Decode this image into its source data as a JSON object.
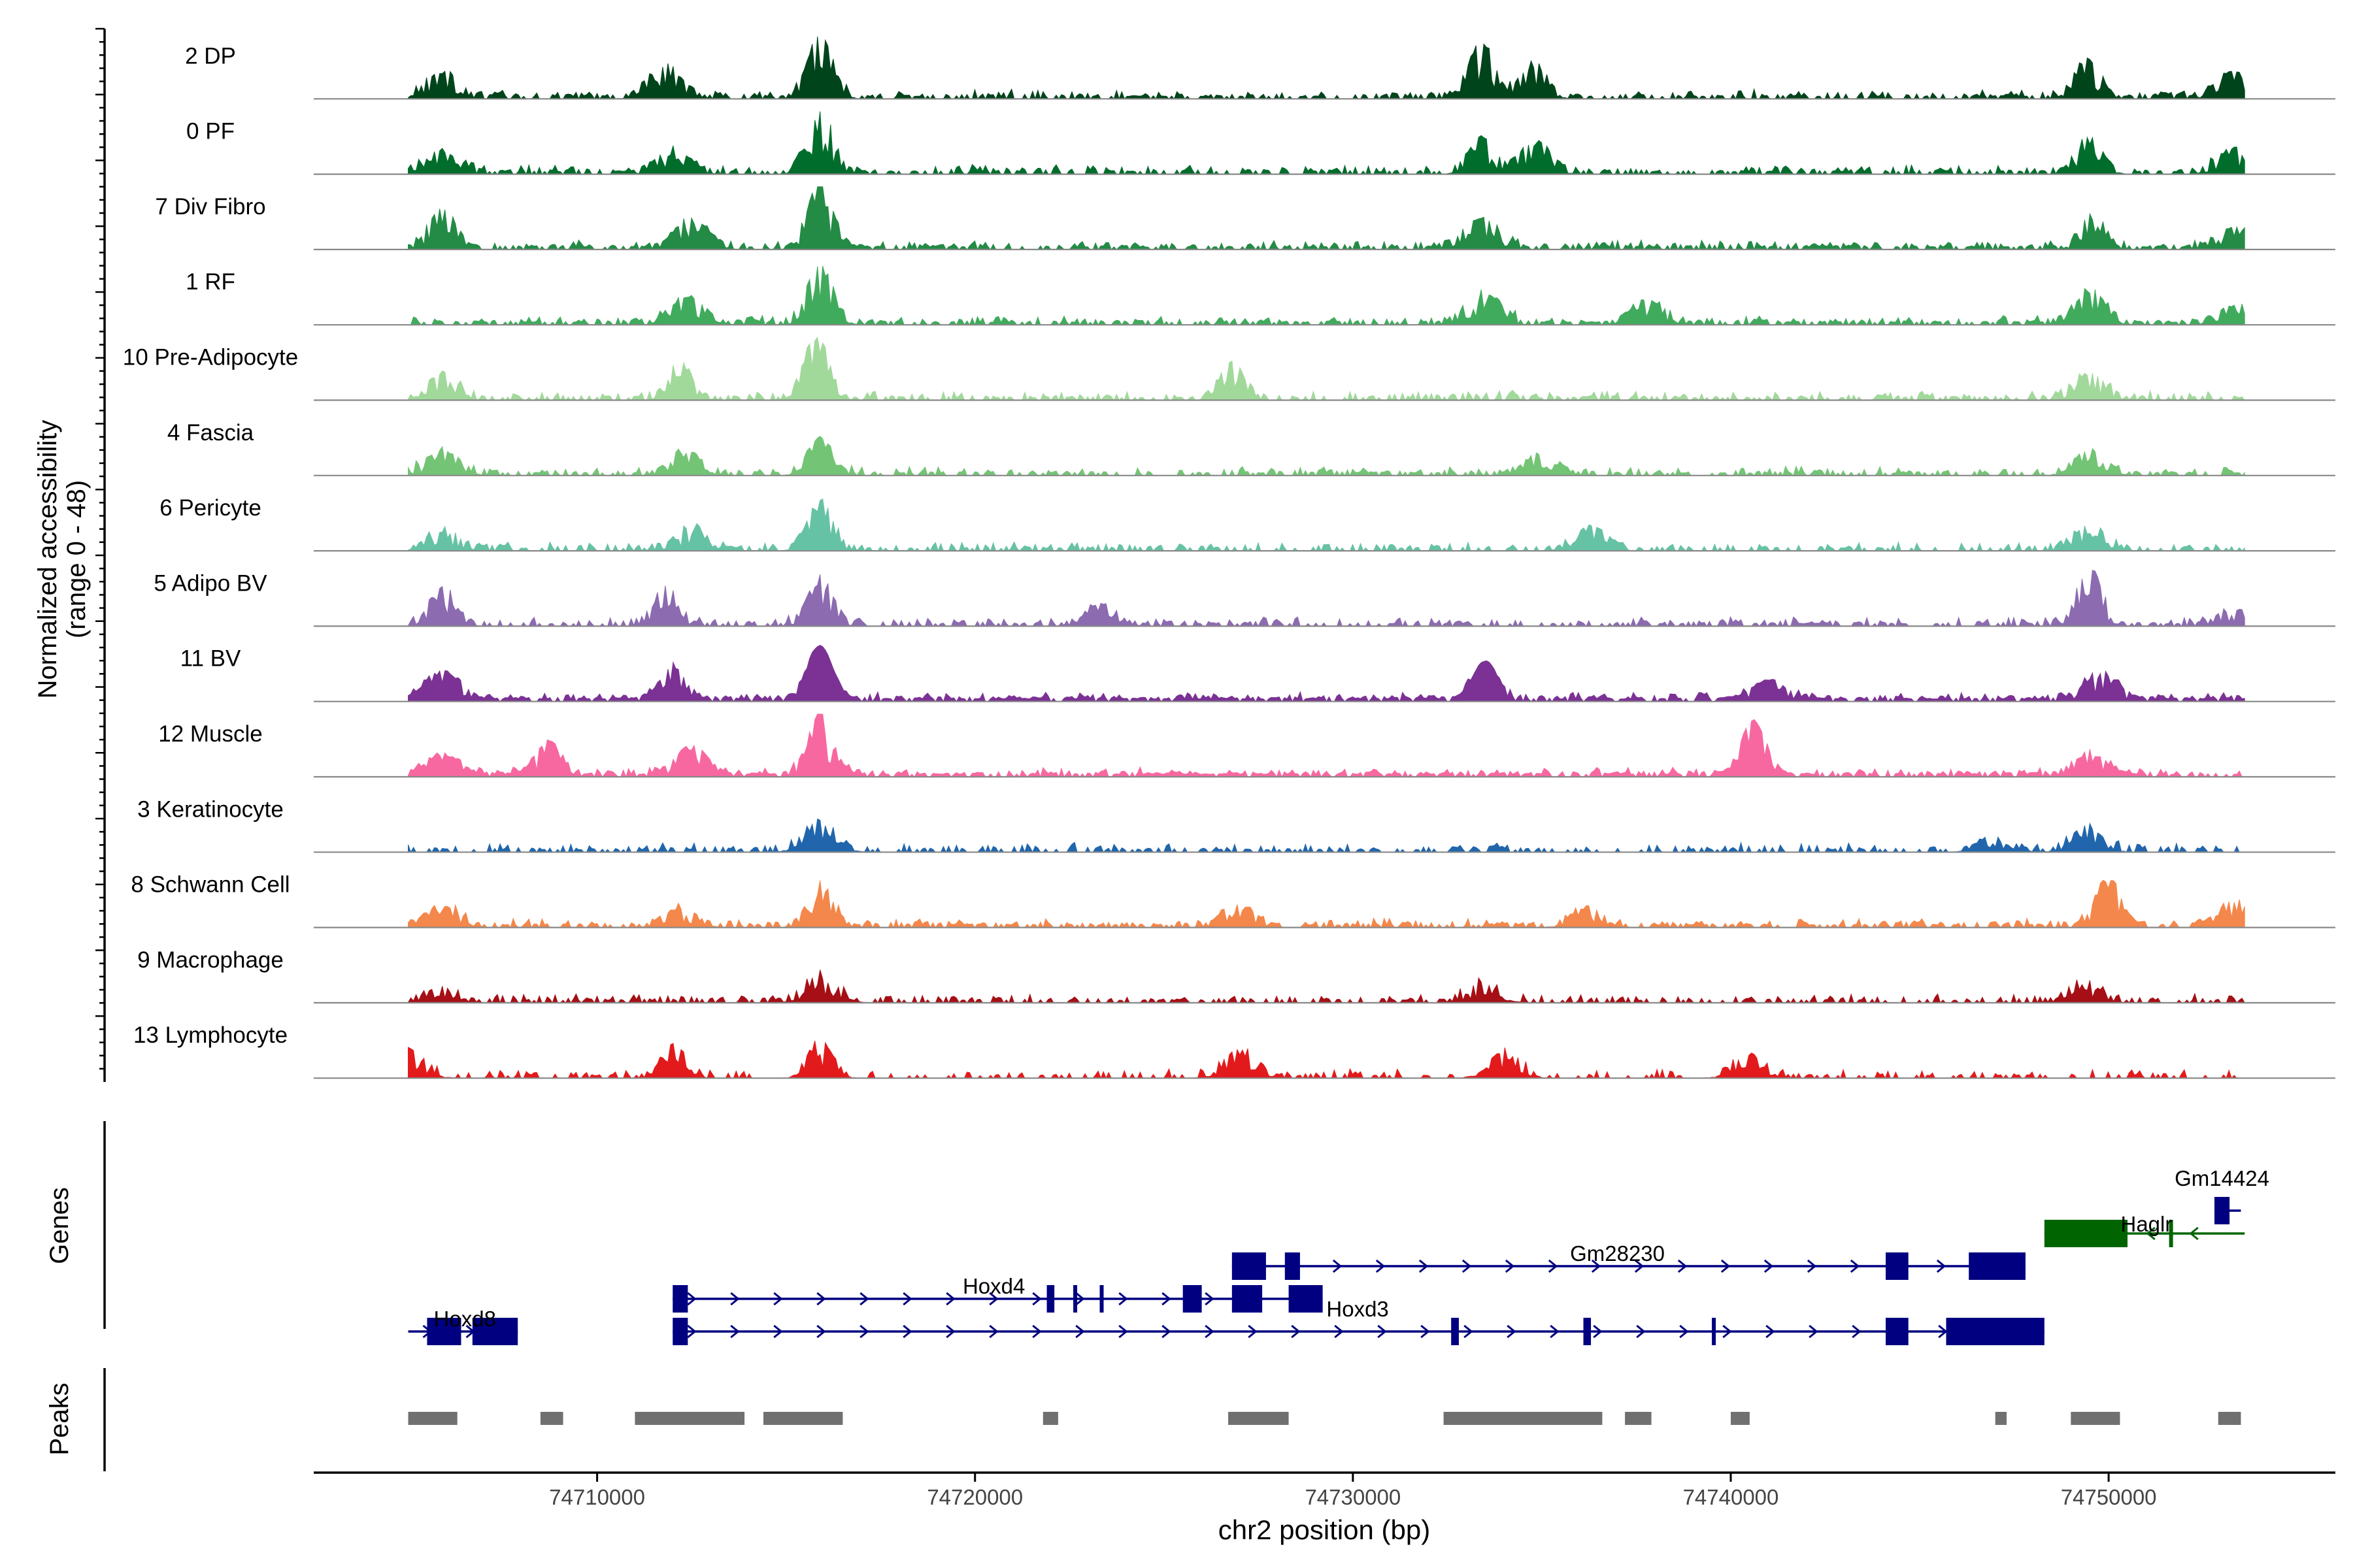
{
  "chart_data": {
    "type": "area",
    "title": "",
    "ylabel_line1": "Normalized accessibility",
    "ylabel_line2": "(range 0 - 48)",
    "xlabel": "chr2 position (bp)",
    "xlim": [
      74702500,
      74756000
    ],
    "xticks": [
      74710000,
      74720000,
      74730000,
      74740000,
      74750000
    ],
    "xtick_labels": [
      "74710000",
      "74720000",
      "74730000",
      "74740000",
      "74750000"
    ],
    "ylim": [
      0,
      48
    ],
    "genes_label": "Genes",
    "peaks_label": "Peaks",
    "common_peaks": [
      74705900,
      74716000,
      74733400
    ],
    "series": [
      {
        "name": "2 DP",
        "color": "#00441b",
        "density": 0.55,
        "bumps": [
          [
            74705900,
            0.35
          ],
          [
            74711800,
            0.45
          ],
          [
            74715900,
            0.95
          ],
          [
            74733400,
            0.85
          ],
          [
            74734800,
            0.55
          ],
          [
            74749400,
            0.6
          ],
          [
            74753300,
            0.4
          ]
        ]
      },
      {
        "name": "0 PF",
        "color": "#006d2c",
        "density": 0.55,
        "bumps": [
          [
            74705900,
            0.3
          ],
          [
            74712000,
            0.35
          ],
          [
            74715900,
            0.98
          ],
          [
            74733400,
            0.55
          ],
          [
            74734800,
            0.45
          ],
          [
            74749500,
            0.55
          ],
          [
            74753300,
            0.35
          ]
        ]
      },
      {
        "name": "7 Div Fibro",
        "color": "#238b45",
        "density": 0.6,
        "bumps": [
          [
            74705900,
            0.6
          ],
          [
            74712500,
            0.45
          ],
          [
            74715900,
            0.98
          ],
          [
            74733400,
            0.45
          ],
          [
            74749600,
            0.5
          ],
          [
            74753300,
            0.3
          ]
        ]
      },
      {
        "name": "1 RF",
        "color": "#41ab5d",
        "density": 0.55,
        "bumps": [
          [
            74712400,
            0.4
          ],
          [
            74715900,
            0.9
          ],
          [
            74733500,
            0.45
          ],
          [
            74737800,
            0.35
          ],
          [
            74749500,
            0.45
          ],
          [
            74753300,
            0.25
          ]
        ]
      },
      {
        "name": "10 Pre-Adipocyte",
        "color": "#a1d99b",
        "density": 0.5,
        "bumps": [
          [
            74705900,
            0.35
          ],
          [
            74712200,
            0.55
          ],
          [
            74715800,
            0.98
          ],
          [
            74726800,
            0.5
          ],
          [
            74749500,
            0.35
          ]
        ]
      },
      {
        "name": "4 Fascia",
        "color": "#74c476",
        "density": 0.5,
        "bumps": [
          [
            74705900,
            0.35
          ],
          [
            74712300,
            0.3
          ],
          [
            74715900,
            0.55
          ],
          [
            74735000,
            0.3
          ],
          [
            74749500,
            0.35
          ]
        ]
      },
      {
        "name": "6 Pericyte",
        "color": "#66c2a4",
        "density": 0.45,
        "bumps": [
          [
            74705900,
            0.25
          ],
          [
            74712500,
            0.3
          ],
          [
            74715900,
            0.75
          ],
          [
            74736300,
            0.35
          ],
          [
            74749500,
            0.35
          ]
        ]
      },
      {
        "name": "5 Adipo BV",
        "color": "#8c6bb1",
        "density": 0.5,
        "bumps": [
          [
            74705900,
            0.55
          ],
          [
            74711800,
            0.6
          ],
          [
            74715900,
            0.75
          ],
          [
            74723300,
            0.3
          ],
          [
            74749500,
            0.85
          ],
          [
            74753300,
            0.2
          ]
        ]
      },
      {
        "name": "11 BV",
        "color": "#7b3294",
        "density": 0.8,
        "bumps": [
          [
            74705900,
            0.45
          ],
          [
            74712000,
            0.5
          ],
          [
            74715900,
            0.85
          ],
          [
            74733500,
            0.6
          ],
          [
            74741000,
            0.3
          ],
          [
            74749800,
            0.4
          ]
        ]
      },
      {
        "name": "12 Muscle",
        "color": "#f768a1",
        "density": 0.75,
        "bumps": [
          [
            74705900,
            0.3
          ],
          [
            74708700,
            0.5
          ],
          [
            74712500,
            0.45
          ],
          [
            74715900,
            0.95
          ],
          [
            74740600,
            0.85
          ],
          [
            74749500,
            0.3
          ]
        ]
      },
      {
        "name": "3 Keratinocyte",
        "color": "#2166ac",
        "density": 0.4,
        "bumps": [
          [
            74715900,
            0.45
          ],
          [
            74747000,
            0.2
          ],
          [
            74749400,
            0.35
          ]
        ]
      },
      {
        "name": "8 Schwann Cell",
        "color": "#f4874b",
        "density": 0.55,
        "bumps": [
          [
            74705900,
            0.3
          ],
          [
            74712200,
            0.25
          ],
          [
            74715900,
            0.65
          ],
          [
            74727000,
            0.3
          ],
          [
            74736200,
            0.25
          ],
          [
            74750000,
            0.7
          ],
          [
            74753300,
            0.35
          ]
        ]
      },
      {
        "name": "9 Macrophage",
        "color": "#a50f15",
        "density": 0.45,
        "bumps": [
          [
            74705900,
            0.2
          ],
          [
            74715900,
            0.4
          ],
          [
            74733500,
            0.3
          ],
          [
            74749300,
            0.3
          ]
        ]
      },
      {
        "name": "13 Lymphocyte",
        "color": "#e31a1c",
        "density": 0.3,
        "bumps": [
          [
            74705000,
            0.4
          ],
          [
            74712000,
            0.5
          ],
          [
            74715900,
            0.55
          ],
          [
            74727000,
            0.4
          ],
          [
            74734000,
            0.35
          ],
          [
            74740500,
            0.3
          ]
        ]
      }
    ],
    "genes": [
      {
        "name": "Hoxd8",
        "color": "#000080",
        "strand": "+",
        "start": 74705000,
        "end": 74707900,
        "row": 3,
        "exons": [
          [
            74705500,
            74706400
          ],
          [
            74706700,
            74707900
          ]
        ],
        "label_x": 74706500,
        "label_anchor": "middle",
        "label_row": 2.6
      },
      {
        "name": "Hoxd4",
        "color": "#000080",
        "strand": "+",
        "start": 74712000,
        "end": 74729200,
        "row": 2,
        "exons": [
          [
            74712000,
            74712400
          ],
          [
            74721900,
            74722100
          ],
          [
            74722600,
            74722650
          ],
          [
            74723300,
            74723350
          ],
          [
            74725500,
            74726000
          ],
          [
            74726800,
            74727600
          ],
          [
            74728300,
            74729200
          ]
        ],
        "label_x": 74720500,
        "label_anchor": "middle",
        "label_row": 1.6
      },
      {
        "name": "Hoxd3",
        "color": "#000080",
        "strand": "+",
        "start": 74712000,
        "end": 74748300,
        "row": 3,
        "exons": [
          [
            74712000,
            74712400
          ],
          [
            74732600,
            74732700
          ],
          [
            74732700,
            74732800
          ],
          [
            74736100,
            74736300
          ],
          [
            74739500,
            74739600
          ],
          [
            74744100,
            74744700
          ],
          [
            74745700,
            74748300
          ]
        ],
        "label_x": 74729300,
        "label_anchor": "start",
        "label_row": 2.3
      },
      {
        "name": "Gm28230",
        "color": "#000080",
        "strand": "+",
        "start": 74726800,
        "end": 74747800,
        "row": 1,
        "exons": [
          [
            74726800,
            74727700
          ],
          [
            74728200,
            74728600
          ],
          [
            74744100,
            74744700
          ],
          [
            74746300,
            74747800
          ]
        ],
        "label_x": 74737000,
        "label_anchor": "middle",
        "label_row": 0.6
      },
      {
        "name": "Haglr",
        "color": "#006400",
        "strand": "-",
        "start": 74748300,
        "end": 74753600,
        "row": 0,
        "exons": [
          [
            74748300,
            74750500
          ],
          [
            74751600,
            74751700
          ]
        ],
        "label_x": 74751000,
        "label_anchor": "middle",
        "label_row": -0.3
      },
      {
        "name": "Gm14424",
        "color": "#000080",
        "strand": "+",
        "start": 74752800,
        "end": 74753500,
        "row": -0.7,
        "exons": [
          [
            74752800,
            74753200
          ]
        ],
        "label_x": 74753000,
        "label_anchor": "middle",
        "label_row": -1.7
      }
    ],
    "peaks": [
      [
        74705000,
        74706300
      ],
      [
        74708500,
        74709100
      ],
      [
        74711000,
        74713900
      ],
      [
        74714400,
        74716500
      ],
      [
        74721800,
        74722200
      ],
      [
        74726700,
        74728300
      ],
      [
        74732400,
        74736600
      ],
      [
        74737200,
        74737900
      ],
      [
        74740000,
        74740500
      ],
      [
        74747000,
        74747300
      ],
      [
        74749000,
        74750300
      ],
      [
        74752900,
        74753500
      ]
    ]
  }
}
